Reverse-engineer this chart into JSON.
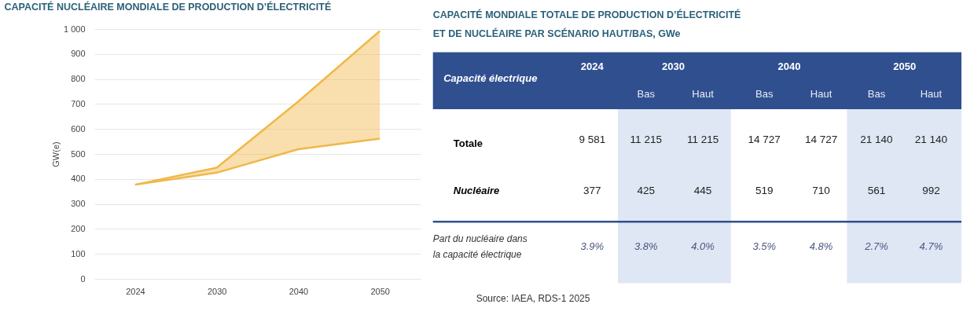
{
  "chart_data": [
    {
      "type": "line",
      "title": "CAPACITÉ NUCLÉAIRE MONDIALE DE PRODUCTION D’ÉLECTRICITÉ",
      "ylabel": "GW(e)",
      "categories": [
        "2024",
        "2030",
        "2040",
        "2050"
      ],
      "series": [
        {
          "type": "line",
          "color": "#f0b84a",
          "values": [
            377,
            425,
            519,
            561
          ]
        },
        {
          "type": "line",
          "color": "#f0b84a",
          "values": [
            377,
            445,
            710,
            992
          ],
          "lower": [
            377,
            425,
            519,
            561
          ],
          "upper": [
            377,
            445,
            710,
            992
          ]
        }
      ],
      "ylim": [
        0,
        1000
      ],
      "yticks": [
        0,
        100,
        200,
        300,
        400,
        500,
        600,
        700,
        800,
        900,
        {
          "value": 1000,
          "label": "1 000"
        }
      ],
      "grid": "y",
      "marker": "none",
      "line_style": "solid"
    },
    {
      "type": "other",
      "title": "CAPACITÉ MONDIALE TOTALE DE PRODUCTION D’ÉLECTRICITÉ ET DE NUCLÉAIRE PAR SCÉNARIO HAUT/BAS, GWe",
      "annotations": [
        "Capacité électrique",
        "2024",
        "2030",
        "2040",
        "2050",
        "Bas",
        "Haut",
        "Bas",
        "Haut",
        "Bas",
        "Haut",
        "Totale",
        "9 581",
        "11 215",
        "11 215",
        "14 727",
        "14 727",
        "21 140",
        "21 140",
        "Nucléaire",
        "377",
        "425",
        "445",
        "519",
        "710",
        "561",
        "992",
        "Part du nucléaire dans\nla capacité électrique",
        "3.9%",
        "3.8%",
        "4.0%",
        "3.5%",
        "4.8%",
        "2.7%",
        "4.7%",
        "Source: IAEA, RDS-1 2025"
      ]
    }
  ]
}
